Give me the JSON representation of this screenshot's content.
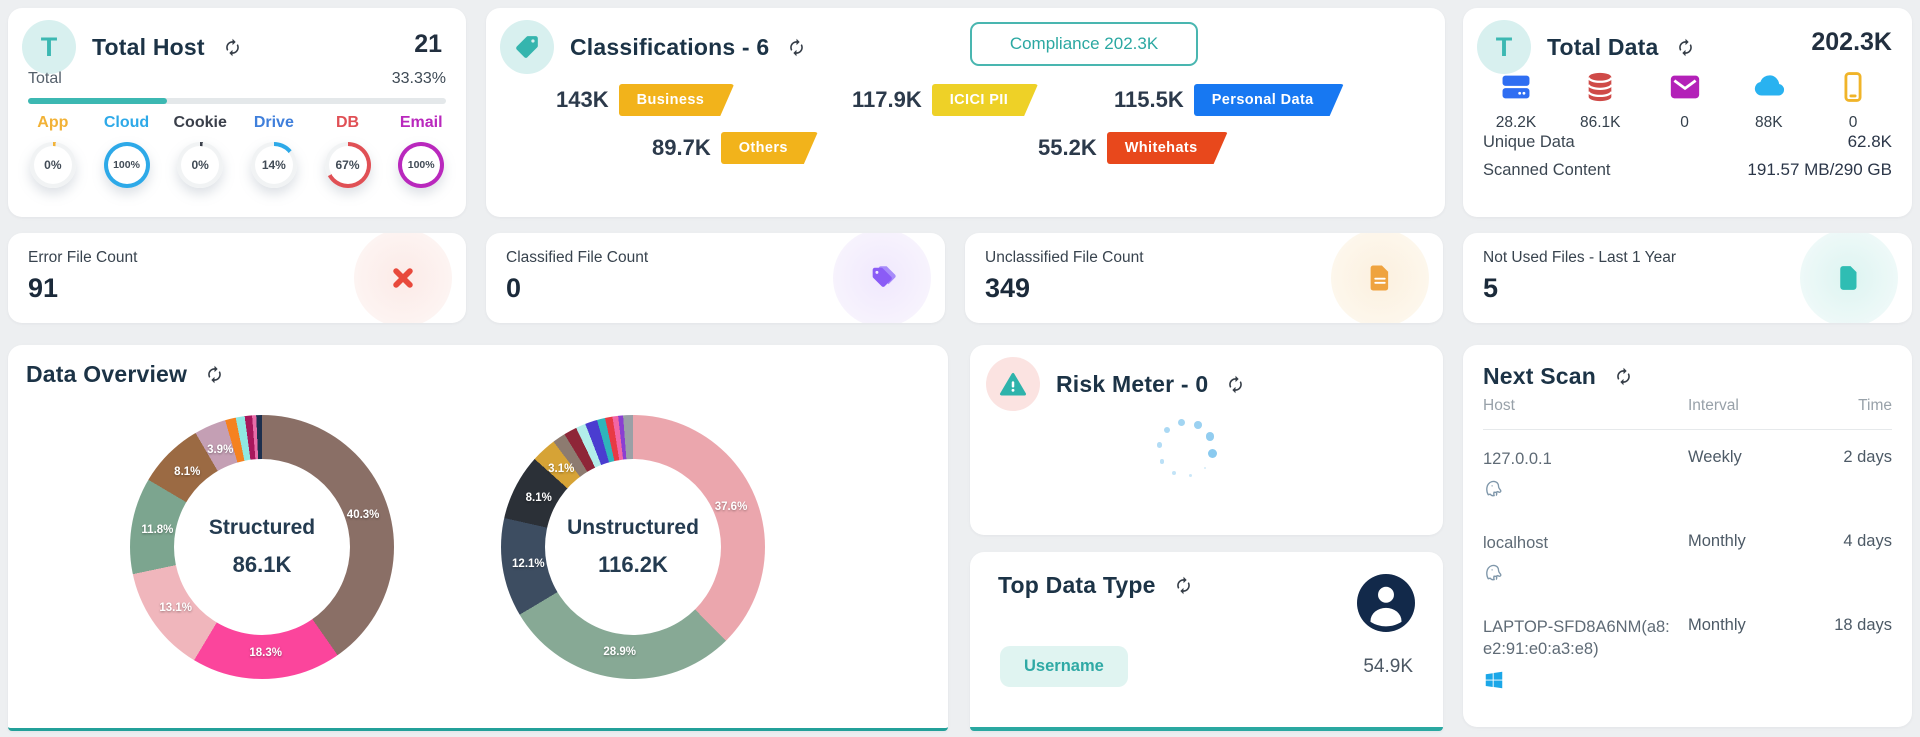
{
  "page": {
    "background": "#edeff1",
    "accent_teal": "#3cb8b2"
  },
  "total_host": {
    "icon_letter": "T",
    "title": "Total Host",
    "value": "21",
    "total_label": "Total",
    "total_pct_label": "33.33%",
    "progress_pct": 33.33,
    "gauges": [
      {
        "label": "App",
        "value": "0%",
        "pct": 0,
        "color": "#f2b236"
      },
      {
        "label": "Cloud",
        "value": "100%",
        "pct": 100,
        "color": "#2da9e8"
      },
      {
        "label": "Cookie",
        "value": "0%",
        "pct": 0,
        "color": "#3a3f4a"
      },
      {
        "label": "Drive",
        "value": "14%",
        "pct": 14,
        "color": "#2da9e8",
        "label_color": "#3f7fdb"
      },
      {
        "label": "DB",
        "value": "67%",
        "pct": 67,
        "color": "#e05055"
      },
      {
        "label": "Email",
        "value": "100%",
        "pct": 100,
        "color": "#b928bd"
      }
    ]
  },
  "classifications": {
    "title": "Classifications - 6",
    "compliance_badge": "Compliance 202.3K",
    "tags_row1": [
      {
        "value": "143K",
        "label": "Business",
        "color": "#f2b31b"
      },
      {
        "value": "117.9K",
        "label": "ICICI PII",
        "color": "#eed127"
      },
      {
        "value": "115.5K",
        "label": "Personal Data",
        "color": "#1778f2"
      }
    ],
    "tags_row2": [
      {
        "value": "89.7K",
        "label": "Others",
        "color": "#f2b31b"
      },
      {
        "value": "55.2K",
        "label": "Whitehats",
        "color": "#e8481c"
      }
    ]
  },
  "total_data": {
    "icon_letter": "T",
    "title": "Total Data",
    "value": "202.3K",
    "sources": [
      {
        "icon": "server-icon",
        "value": "28.2K"
      },
      {
        "icon": "database-icon",
        "value": "86.1K"
      },
      {
        "icon": "mail-icon",
        "value": "0"
      },
      {
        "icon": "cloud-icon",
        "value": "88K"
      },
      {
        "icon": "mobile-icon",
        "value": "0"
      }
    ],
    "unique_label": "Unique Data",
    "unique_value": "62.8K",
    "scanned_label": "Scanned Content",
    "scanned_value": "191.57 MB/290 GB"
  },
  "stat_cards": [
    {
      "label": "Error File Count",
      "value": "91",
      "icon": "error-x-icon",
      "circle_bg": "#fdeeec"
    },
    {
      "label": "Classified File Count",
      "value": "0",
      "icon": "classified-tags-icon",
      "circle_bg": "#f1ebfc"
    },
    {
      "label": "Unclassified File Count",
      "value": "349",
      "icon": "unclassified-file-icon",
      "circle_bg": "#fdf2e2"
    },
    {
      "label": "Not Used Files - Last 1 Year",
      "value": "5",
      "icon": "not-used-file-icon",
      "circle_bg": "#e2f6f4"
    }
  ],
  "data_overview": {
    "title": "Data Overview"
  },
  "chart_data": [
    {
      "type": "pie",
      "title": "Structured",
      "center_value": "86.1K",
      "legend_position": "none",
      "segments": [
        {
          "label": "40.3%",
          "value": 40.3,
          "color": "#8a6f66"
        },
        {
          "label": "18.3%",
          "value": 18.3,
          "color": "#fb459c"
        },
        {
          "label": "13.1%",
          "value": 13.1,
          "color": "#f0b6bc"
        },
        {
          "label": "11.8%",
          "value": 11.8,
          "color": "#7ca58f"
        },
        {
          "label": "8.1%",
          "value": 8.1,
          "color": "#9b6a43"
        },
        {
          "label": "3.9%",
          "value": 3.9,
          "color": "#c49fb4"
        },
        {
          "value": 1.3,
          "color": "#f58220"
        },
        {
          "value": 1.1,
          "color": "#8fe8e2"
        },
        {
          "value": 0.9,
          "color": "#a8175c"
        },
        {
          "value": 0.5,
          "color": "#e86ca8"
        },
        {
          "value": 0.7,
          "color": "#1d2f4e"
        }
      ]
    },
    {
      "type": "pie",
      "title": "Unstructured",
      "center_value": "116.2K",
      "legend_position": "none",
      "segments": [
        {
          "label": "37.6%",
          "value": 37.6,
          "color": "#eba6ad"
        },
        {
          "label": "28.9%",
          "value": 28.9,
          "color": "#87a995"
        },
        {
          "label": "12.1%",
          "value": 12.1,
          "color": "#3d4d61"
        },
        {
          "label": "8.1%",
          "value": 8.1,
          "color": "#2b3037"
        },
        {
          "label": "3.1%",
          "value": 3.1,
          "color": "#d6a336"
        },
        {
          "value": 1.6,
          "color": "#8d7b70"
        },
        {
          "value": 1.6,
          "color": "#8e2638"
        },
        {
          "value": 1.2,
          "color": "#b2eeea"
        },
        {
          "value": 1.5,
          "color": "#4a3dd0"
        },
        {
          "value": 1.0,
          "color": "#2fb5bb"
        },
        {
          "value": 0.9,
          "color": "#e83a44"
        },
        {
          "value": 0.7,
          "color": "#f266a6"
        },
        {
          "value": 0.6,
          "color": "#8a3fd1"
        },
        {
          "value": 1.2,
          "color": "#9aa0a6"
        }
      ]
    }
  ],
  "risk_meter": {
    "title": "Risk Meter - 0"
  },
  "top_data_type": {
    "title": "Top Data Type",
    "items": [
      {
        "label": "Username",
        "value": "54.9K"
      }
    ]
  },
  "next_scan": {
    "title": "Next Scan",
    "columns": [
      "Host",
      "Interval",
      "Time"
    ],
    "rows": [
      {
        "host": "127.0.0.1",
        "os": "postgres-icon",
        "interval": "Weekly",
        "time": "2 days"
      },
      {
        "host": "localhost",
        "os": "postgres-icon",
        "interval": "Monthly",
        "time": "4 days"
      },
      {
        "host": "LAPTOP-SFD8A6NM(a8:e2:91:e0:a3:e8)",
        "os": "windows-icon",
        "interval": "Monthly",
        "time": "18 days"
      }
    ]
  }
}
